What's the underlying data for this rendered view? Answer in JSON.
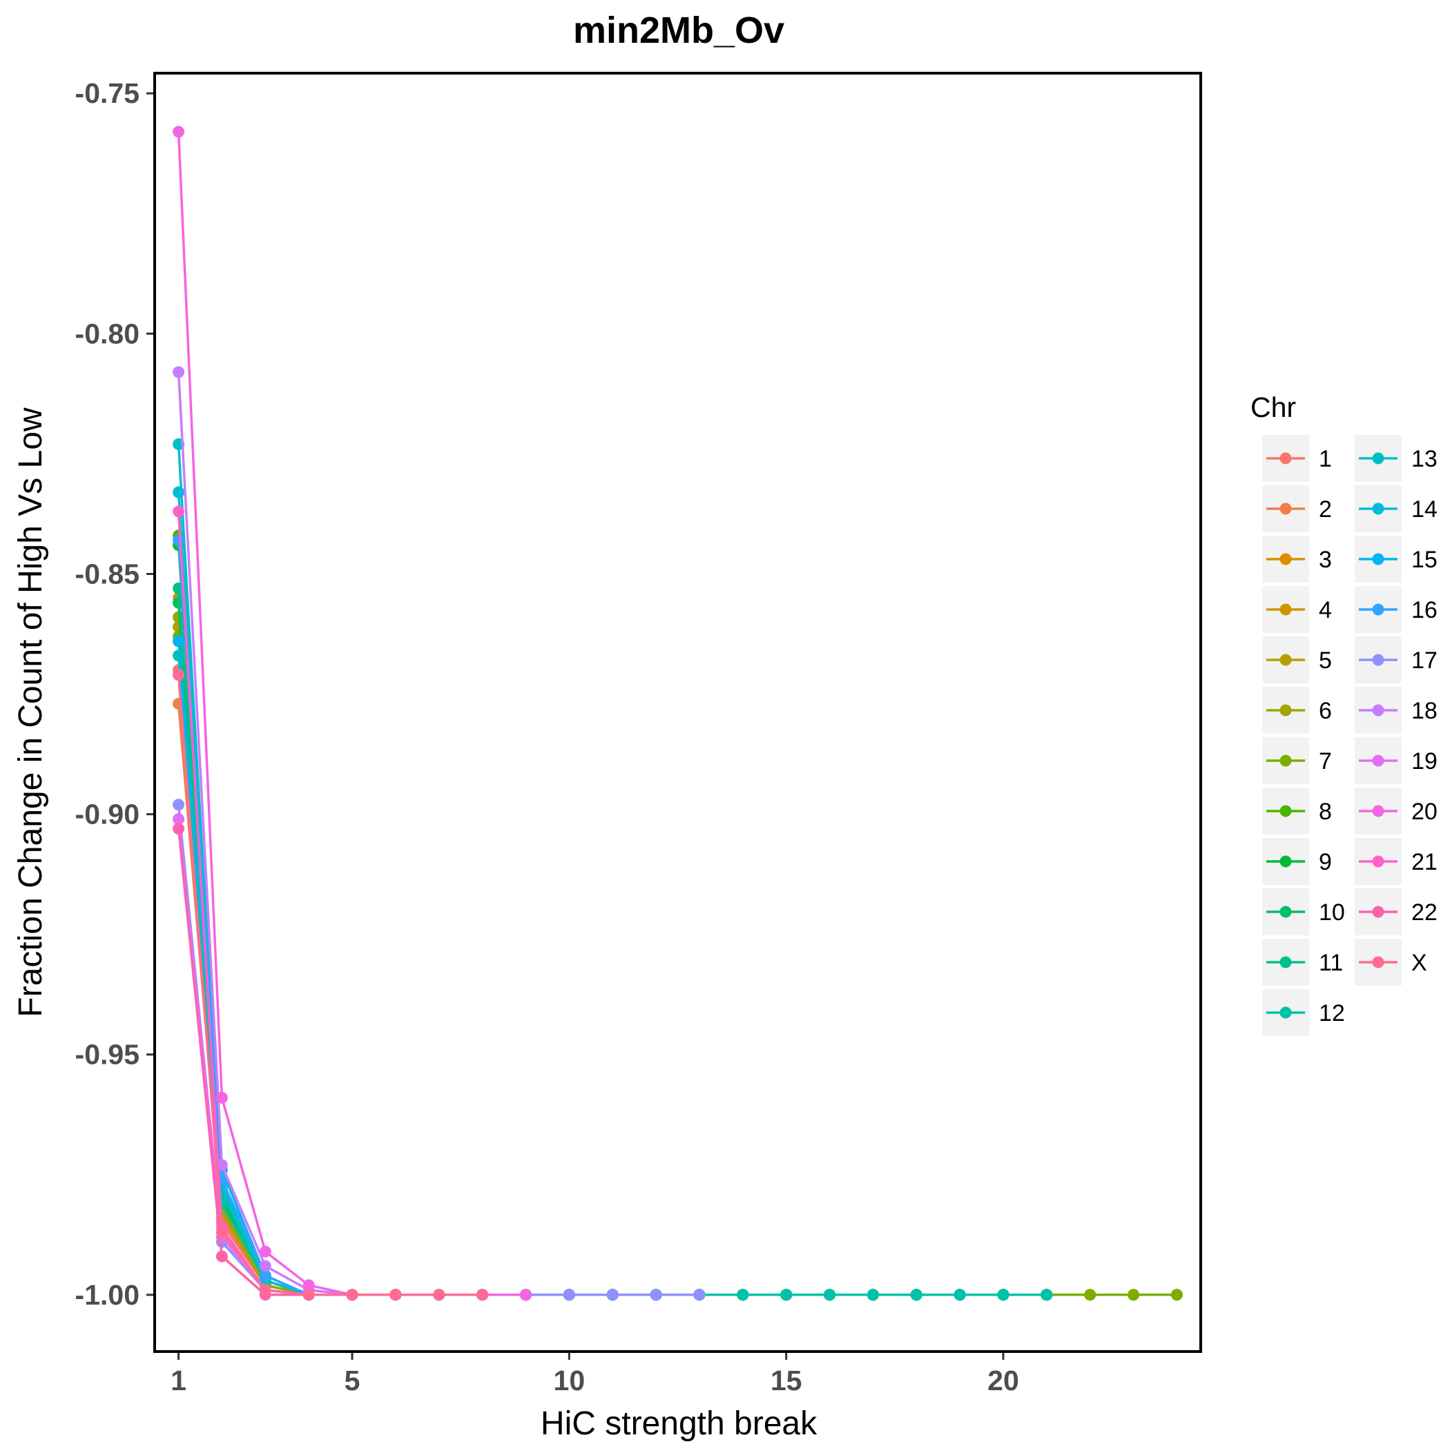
{
  "chart_data": {
    "type": "line",
    "title": "min2Mb_Ov",
    "xlabel": "HiC strength break",
    "ylabel": "Fraction Change in Count of High Vs Low",
    "xlim": [
      0.45,
      24.55
    ],
    "ylim": [
      -1.0118,
      -0.7458
    ],
    "x_ticks": [
      1,
      5,
      10,
      15,
      20
    ],
    "y_ticks": [
      -0.75,
      -0.8,
      -0.85,
      -0.9,
      -0.95,
      -1.0
    ],
    "y_tick_labels": [
      "-0.75",
      "-0.80",
      "-0.85",
      "-0.90",
      "-0.95",
      "-1.00"
    ],
    "x_tick_labels": [
      "1",
      "5",
      "10",
      "15",
      "20"
    ],
    "legend": {
      "title": "Chr",
      "placement": "right",
      "columns": 2
    },
    "series": [
      {
        "name": "1",
        "color": "#F8766D",
        "x": [
          1,
          2,
          3,
          4,
          5,
          6,
          7,
          8,
          9,
          10,
          11,
          12,
          13,
          14,
          15,
          16,
          17,
          18,
          19,
          20,
          21
        ],
        "y": [
          -0.87,
          -0.985,
          -0.998,
          -1.0,
          -1.0,
          -1.0,
          -1.0,
          -1.0,
          -1.0,
          -1.0,
          -1.0,
          -1.0,
          -1.0,
          -1.0,
          -1.0,
          -1.0,
          -1.0,
          -1.0,
          -1.0,
          -1.0,
          -1.0
        ]
      },
      {
        "name": "2",
        "color": "#EF7F49",
        "x": [
          1,
          2,
          3,
          4,
          5,
          6,
          7,
          8,
          9,
          10,
          11,
          12,
          13,
          14,
          15,
          16,
          17,
          18,
          19,
          20,
          21
        ],
        "y": [
          -0.877,
          -0.984,
          -0.998,
          -1.0,
          -1.0,
          -1.0,
          -1.0,
          -1.0,
          -1.0,
          -1.0,
          -1.0,
          -1.0,
          -1.0,
          -1.0,
          -1.0,
          -1.0,
          -1.0,
          -1.0,
          -1.0,
          -1.0,
          -1.0
        ]
      },
      {
        "name": "3",
        "color": "#DE8C00",
        "x": [
          1,
          2,
          3,
          4,
          5,
          6,
          7,
          8,
          9,
          10,
          11,
          12,
          13,
          14,
          15,
          16,
          17,
          18,
          19,
          20,
          21
        ],
        "y": [
          -0.871,
          -0.983,
          -0.998,
          -1.0,
          -1.0,
          -1.0,
          -1.0,
          -1.0,
          -1.0,
          -1.0,
          -1.0,
          -1.0,
          -1.0,
          -1.0,
          -1.0,
          -1.0,
          -1.0,
          -1.0,
          -1.0,
          -1.0,
          -1.0
        ]
      },
      {
        "name": "4",
        "color": "#CD9600",
        "x": [
          1,
          2,
          3,
          4,
          5,
          6,
          7,
          8,
          9,
          10,
          11,
          12,
          13,
          14,
          15,
          16,
          17,
          18,
          19,
          20,
          21
        ],
        "y": [
          -0.855,
          -0.982,
          -0.997,
          -1.0,
          -1.0,
          -1.0,
          -1.0,
          -1.0,
          -1.0,
          -1.0,
          -1.0,
          -1.0,
          -1.0,
          -1.0,
          -1.0,
          -1.0,
          -1.0,
          -1.0,
          -1.0,
          -1.0,
          -1.0
        ]
      },
      {
        "name": "5",
        "color": "#B79F00",
        "x": [
          1,
          2,
          3,
          4,
          5,
          6,
          7,
          8,
          9,
          10,
          11,
          12,
          13,
          14,
          15,
          16,
          17,
          18,
          19,
          20,
          21
        ],
        "y": [
          -0.861,
          -0.983,
          -0.998,
          -1.0,
          -1.0,
          -1.0,
          -1.0,
          -1.0,
          -1.0,
          -1.0,
          -1.0,
          -1.0,
          -1.0,
          -1.0,
          -1.0,
          -1.0,
          -1.0,
          -1.0,
          -1.0,
          -1.0,
          -1.0
        ]
      },
      {
        "name": "6",
        "color": "#9DA700",
        "x": [
          1,
          2,
          3,
          4,
          5,
          6,
          7,
          8,
          9,
          10,
          11,
          12,
          13,
          14,
          15,
          16,
          17,
          18,
          19,
          20,
          21,
          22,
          23,
          24
        ],
        "y": [
          -0.859,
          -0.982,
          -0.998,
          -1.0,
          -1.0,
          -1.0,
          -1.0,
          -1.0,
          -1.0,
          -1.0,
          -1.0,
          -1.0,
          -1.0,
          -1.0,
          -1.0,
          -1.0,
          -1.0,
          -1.0,
          -1.0,
          -1.0,
          -1.0,
          -1.0,
          -1.0,
          -1.0
        ]
      },
      {
        "name": "7",
        "color": "#7CAE00",
        "x": [
          1,
          2,
          3,
          4,
          5,
          6,
          7,
          8,
          9,
          10,
          11,
          12,
          13,
          14,
          15,
          16,
          17,
          18,
          19,
          20,
          21,
          22,
          23,
          24
        ],
        "y": [
          -0.863,
          -0.981,
          -0.997,
          -1.0,
          -1.0,
          -1.0,
          -1.0,
          -1.0,
          -1.0,
          -1.0,
          -1.0,
          -1.0,
          -1.0,
          -1.0,
          -1.0,
          -1.0,
          -1.0,
          -1.0,
          -1.0,
          -1.0,
          -1.0,
          -1.0,
          -1.0,
          -1.0
        ]
      },
      {
        "name": "8",
        "color": "#49B500",
        "x": [
          1,
          2,
          3,
          4,
          5,
          6,
          7,
          8,
          9,
          10,
          11,
          12,
          13,
          14,
          15,
          16,
          17,
          18,
          19,
          20,
          21
        ],
        "y": [
          -0.842,
          -0.98,
          -0.997,
          -1.0,
          -1.0,
          -1.0,
          -1.0,
          -1.0,
          -1.0,
          -1.0,
          -1.0,
          -1.0,
          -1.0,
          -1.0,
          -1.0,
          -1.0,
          -1.0,
          -1.0,
          -1.0,
          -1.0,
          -1.0
        ]
      },
      {
        "name": "9",
        "color": "#00BA38",
        "x": [
          1,
          2,
          3,
          4,
          5,
          6,
          7,
          8,
          9,
          10,
          11,
          12,
          13,
          14,
          15,
          16,
          17,
          18,
          19,
          20,
          21
        ],
        "y": [
          -0.844,
          -0.98,
          -0.997,
          -1.0,
          -1.0,
          -1.0,
          -1.0,
          -1.0,
          -1.0,
          -1.0,
          -1.0,
          -1.0,
          -1.0,
          -1.0,
          -1.0,
          -1.0,
          -1.0,
          -1.0,
          -1.0,
          -1.0,
          -1.0
        ]
      },
      {
        "name": "10",
        "color": "#00BE67",
        "x": [
          1,
          2,
          3,
          4,
          5,
          6,
          7,
          8,
          9,
          10,
          11,
          12,
          13,
          14,
          15,
          16,
          17,
          18,
          19,
          20,
          21
        ],
        "y": [
          -0.856,
          -0.981,
          -0.997,
          -1.0,
          -1.0,
          -1.0,
          -1.0,
          -1.0,
          -1.0,
          -1.0,
          -1.0,
          -1.0,
          -1.0,
          -1.0,
          -1.0,
          -1.0,
          -1.0,
          -1.0,
          -1.0,
          -1.0,
          -1.0
        ]
      },
      {
        "name": "11",
        "color": "#00C08B",
        "x": [
          1,
          2,
          3,
          4,
          5,
          6,
          7,
          8,
          9,
          10,
          11,
          12,
          13,
          14,
          15,
          16,
          17,
          18,
          19,
          20,
          21
        ],
        "y": [
          -0.853,
          -0.979,
          -0.997,
          -1.0,
          -1.0,
          -1.0,
          -1.0,
          -1.0,
          -1.0,
          -1.0,
          -1.0,
          -1.0,
          -1.0,
          -1.0,
          -1.0,
          -1.0,
          -1.0,
          -1.0,
          -1.0,
          -1.0,
          -1.0
        ]
      },
      {
        "name": "12",
        "color": "#00C1AA",
        "x": [
          1,
          2,
          3,
          4,
          5,
          6,
          7,
          8,
          9,
          10,
          11,
          12,
          13,
          14,
          15,
          16,
          17,
          18,
          19,
          20,
          21
        ],
        "y": [
          -0.867,
          -0.981,
          -0.997,
          -1.0,
          -1.0,
          -1.0,
          -1.0,
          -1.0,
          -1.0,
          -1.0,
          -1.0,
          -1.0,
          -1.0,
          -1.0,
          -1.0,
          -1.0,
          -1.0,
          -1.0,
          -1.0,
          -1.0,
          -1.0
        ]
      },
      {
        "name": "13",
        "color": "#00BFC4",
        "x": [
          1,
          2,
          3,
          4,
          5,
          6,
          7,
          8,
          9,
          10,
          11,
          12,
          13
        ],
        "y": [
          -0.823,
          -0.978,
          -0.997,
          -1.0,
          -1.0,
          -1.0,
          -1.0,
          -1.0,
          -1.0,
          -1.0,
          -1.0,
          -1.0,
          -1.0
        ]
      },
      {
        "name": "14",
        "color": "#00BBDC",
        "x": [
          1,
          2,
          3,
          4,
          5,
          6,
          7,
          8,
          9,
          10,
          11,
          12,
          13
        ],
        "y": [
          -0.833,
          -0.977,
          -0.996,
          -1.0,
          -1.0,
          -1.0,
          -1.0,
          -1.0,
          -1.0,
          -1.0,
          -1.0,
          -1.0,
          -1.0
        ]
      },
      {
        "name": "15",
        "color": "#00B4F0",
        "x": [
          1,
          2,
          3,
          4,
          5,
          6,
          7,
          8,
          9,
          10,
          11,
          12,
          13
        ],
        "y": [
          -0.864,
          -0.974,
          -0.996,
          -1.0,
          -1.0,
          -1.0,
          -1.0,
          -1.0,
          -1.0,
          -1.0,
          -1.0,
          -1.0,
          -1.0
        ]
      },
      {
        "name": "16",
        "color": "#35A2FF",
        "x": [
          1,
          2,
          3,
          4,
          5,
          6,
          7,
          8,
          9,
          10,
          11,
          12,
          13
        ],
        "y": [
          -0.843,
          -0.976,
          -0.996,
          -1.0,
          -1.0,
          -1.0,
          -1.0,
          -1.0,
          -1.0,
          -1.0,
          -1.0,
          -1.0,
          -1.0
        ]
      },
      {
        "name": "17",
        "color": "#8F91FF",
        "x": [
          1,
          2,
          3,
          4,
          5,
          6,
          7,
          8,
          9,
          10,
          11,
          12,
          13
        ],
        "y": [
          -0.898,
          -0.989,
          -0.999,
          -1.0,
          -1.0,
          -1.0,
          -1.0,
          -1.0,
          -1.0,
          -1.0,
          -1.0,
          -1.0,
          -1.0
        ]
      },
      {
        "name": "18",
        "color": "#C77CFF",
        "x": [
          1,
          2,
          3,
          4,
          5,
          6,
          7,
          8,
          9
        ],
        "y": [
          -0.808,
          -0.973,
          -0.994,
          -0.999,
          -1.0,
          -1.0,
          -1.0,
          -1.0,
          -1.0
        ]
      },
      {
        "name": "19",
        "color": "#E36EF6",
        "x": [
          1,
          2,
          3,
          4,
          5,
          6,
          7,
          8,
          9
        ],
        "y": [
          -0.901,
          -0.988,
          -0.999,
          -1.0,
          -1.0,
          -1.0,
          -1.0,
          -1.0,
          -1.0
        ]
      },
      {
        "name": "20",
        "color": "#F564E3",
        "x": [
          1,
          2,
          3,
          4,
          5,
          6,
          7,
          8,
          9
        ],
        "y": [
          -0.758,
          -0.959,
          -0.991,
          -0.998,
          -1.0,
          -1.0,
          -1.0,
          -1.0,
          -1.0
        ]
      },
      {
        "name": "21",
        "color": "#FF61C9",
        "x": [
          1,
          2,
          3,
          4,
          5,
          6,
          7,
          8
        ],
        "y": [
          -0.837,
          -0.986,
          -0.999,
          -1.0,
          -1.0,
          -1.0,
          -1.0,
          -1.0
        ]
      },
      {
        "name": "22",
        "color": "#FF62AD",
        "x": [
          1,
          2,
          3,
          4,
          5,
          6,
          7,
          8
        ],
        "y": [
          -0.903,
          -0.992,
          -1.0,
          -1.0,
          -1.0,
          -1.0,
          -1.0,
          -1.0
        ]
      },
      {
        "name": "X",
        "color": "#FF6C91",
        "x": [
          1,
          2,
          3,
          4,
          5,
          6,
          7,
          8
        ],
        "y": [
          -0.871,
          -0.987,
          -0.999,
          -1.0,
          -1.0,
          -1.0,
          -1.0,
          -1.0
        ]
      }
    ]
  }
}
